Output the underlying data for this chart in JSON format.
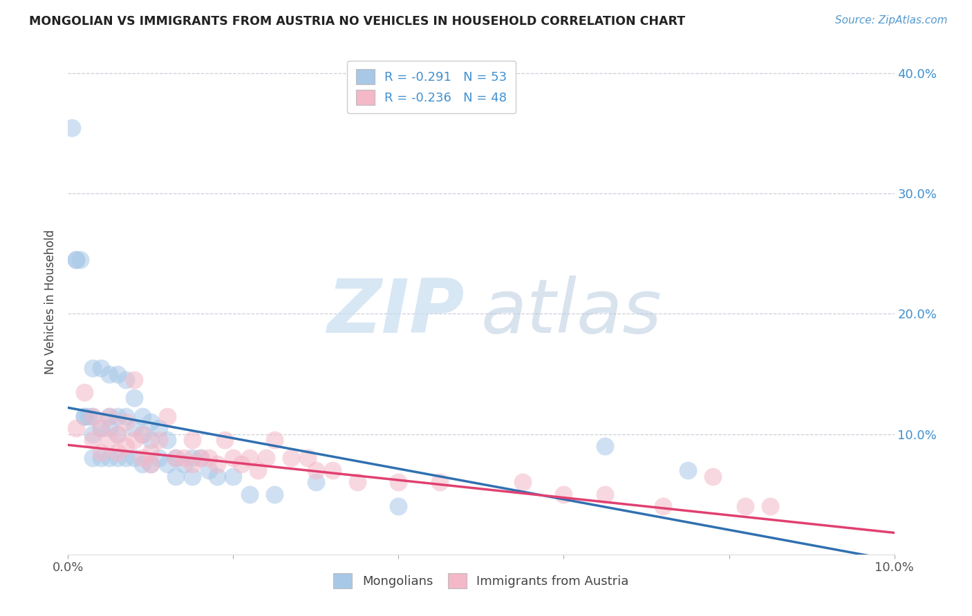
{
  "title": "MONGOLIAN VS IMMIGRANTS FROM AUSTRIA NO VEHICLES IN HOUSEHOLD CORRELATION CHART",
  "source": "Source: ZipAtlas.com",
  "ylabel": "No Vehicles in Household",
  "xlim": [
    0.0,
    0.1
  ],
  "ylim": [
    0.0,
    0.42
  ],
  "yticks": [
    0.1,
    0.2,
    0.3,
    0.4
  ],
  "ytick_labels": [
    "10.0%",
    "20.0%",
    "30.0%",
    "40.0%"
  ],
  "xticks": [
    0.0,
    0.02,
    0.04,
    0.06,
    0.08,
    0.1
  ],
  "xtick_labels": [
    "0.0%",
    "",
    "",
    "",
    "",
    "10.0%"
  ],
  "blue_R": -0.291,
  "blue_N": 53,
  "pink_R": -0.236,
  "pink_N": 48,
  "blue_color": "#a8c8e8",
  "pink_color": "#f4b8c8",
  "blue_line_color": "#3070b0",
  "pink_line_color": "#e04070",
  "tick_label_color": "#4090d0",
  "background_color": "#ffffff",
  "grid_color": "#c8c8d8",
  "legend_blue_label": "R = -0.291   N = 53",
  "legend_pink_label": "R = -0.236   N = 48",
  "blue_line_x0": 0.0,
  "blue_line_y0": 0.122,
  "blue_line_x1": 0.1,
  "blue_line_y1": -0.005,
  "pink_line_x0": 0.0,
  "pink_line_y0": 0.091,
  "pink_line_x1": 0.1,
  "pink_line_y1": 0.018,
  "blue_scatter_x": [
    0.0005,
    0.001,
    0.001,
    0.0015,
    0.002,
    0.002,
    0.0025,
    0.003,
    0.003,
    0.003,
    0.003,
    0.004,
    0.004,
    0.004,
    0.005,
    0.005,
    0.005,
    0.005,
    0.006,
    0.006,
    0.006,
    0.006,
    0.007,
    0.007,
    0.007,
    0.008,
    0.008,
    0.008,
    0.009,
    0.009,
    0.009,
    0.01,
    0.01,
    0.01,
    0.011,
    0.011,
    0.012,
    0.012,
    0.013,
    0.013,
    0.014,
    0.015,
    0.015,
    0.016,
    0.017,
    0.018,
    0.02,
    0.022,
    0.025,
    0.03,
    0.04,
    0.065,
    0.075
  ],
  "blue_scatter_y": [
    0.355,
    0.245,
    0.245,
    0.245,
    0.115,
    0.115,
    0.115,
    0.155,
    0.115,
    0.1,
    0.08,
    0.155,
    0.105,
    0.08,
    0.15,
    0.115,
    0.105,
    0.08,
    0.15,
    0.115,
    0.1,
    0.08,
    0.145,
    0.115,
    0.08,
    0.13,
    0.105,
    0.08,
    0.115,
    0.1,
    0.075,
    0.11,
    0.095,
    0.075,
    0.105,
    0.08,
    0.095,
    0.075,
    0.08,
    0.065,
    0.075,
    0.08,
    0.065,
    0.08,
    0.07,
    0.065,
    0.065,
    0.05,
    0.05,
    0.06,
    0.04,
    0.09,
    0.07
  ],
  "pink_scatter_x": [
    0.001,
    0.002,
    0.003,
    0.003,
    0.004,
    0.004,
    0.005,
    0.005,
    0.006,
    0.006,
    0.007,
    0.007,
    0.008,
    0.008,
    0.009,
    0.009,
    0.01,
    0.01,
    0.011,
    0.012,
    0.013,
    0.014,
    0.015,
    0.015,
    0.016,
    0.017,
    0.018,
    0.019,
    0.02,
    0.021,
    0.022,
    0.023,
    0.024,
    0.025,
    0.027,
    0.029,
    0.03,
    0.032,
    0.035,
    0.04,
    0.045,
    0.055,
    0.06,
    0.065,
    0.072,
    0.078,
    0.082,
    0.085
  ],
  "pink_scatter_y": [
    0.105,
    0.135,
    0.115,
    0.095,
    0.105,
    0.085,
    0.115,
    0.095,
    0.1,
    0.085,
    0.11,
    0.09,
    0.145,
    0.095,
    0.1,
    0.08,
    0.085,
    0.075,
    0.095,
    0.115,
    0.08,
    0.08,
    0.095,
    0.075,
    0.08,
    0.08,
    0.075,
    0.095,
    0.08,
    0.075,
    0.08,
    0.07,
    0.08,
    0.095,
    0.08,
    0.08,
    0.07,
    0.07,
    0.06,
    0.06,
    0.06,
    0.06,
    0.05,
    0.05,
    0.04,
    0.065,
    0.04,
    0.04
  ]
}
